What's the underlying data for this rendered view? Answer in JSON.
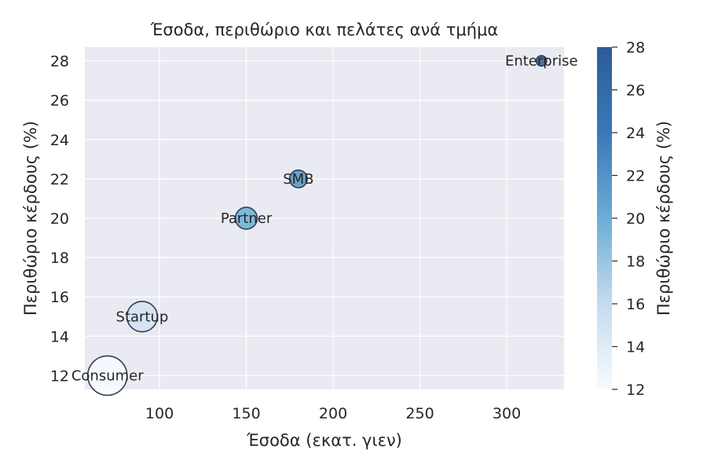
{
  "chart_data": {
    "type": "scatter",
    "title": "Έσοδα, περιθώριο και πελάτες ανά τμήμα",
    "xlabel": "Έσοδα (εκατ. γιεν)",
    "ylabel": "Περιθώριο κέρδους (%)",
    "colorbar_label": "Περιθώριο κέρδους (%)",
    "xlim": [
      57,
      333
    ],
    "ylim": [
      11.3,
      28.7
    ],
    "xticks": [
      100,
      150,
      200,
      250,
      300
    ],
    "yticks": [
      12,
      14,
      16,
      18,
      20,
      22,
      24,
      26,
      28
    ],
    "colorbar_ticks": [
      12,
      14,
      16,
      18,
      20,
      22,
      24,
      26,
      28
    ],
    "colorbar_range": [
      12,
      28
    ],
    "grid": true,
    "colormap": "Blues",
    "points": [
      {
        "label": "Consumer",
        "x": 70,
        "y": 12,
        "size": 1
      },
      {
        "label": "Startup",
        "x": 90,
        "y": 15,
        "size": 0.6
      },
      {
        "label": "Partner",
        "x": 150,
        "y": 20,
        "size": 0.31
      },
      {
        "label": "SMB",
        "x": 180,
        "y": 22,
        "size": 0.2
      },
      {
        "label": "Enterprise",
        "x": 320,
        "y": 28,
        "size": 0.07
      }
    ],
    "colors": {
      "plot_background": "#eaeaf2",
      "grid": "#ffffff",
      "marker_edge": "#2f3e55",
      "text": "#262626"
    }
  }
}
